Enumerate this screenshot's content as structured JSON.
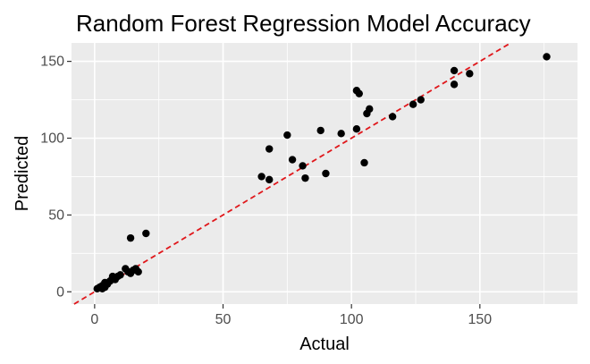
{
  "chart_data": {
    "type": "scatter",
    "title": "Random Forest Regression Model Accuracy",
    "xlabel": "Actual",
    "ylabel": "Predicted",
    "xlim": [
      -9,
      188
    ],
    "ylim": [
      -8,
      162
    ],
    "x_ticks": [
      0,
      50,
      100,
      150
    ],
    "x_tick_labels": [
      "0",
      "50",
      "100",
      "150"
    ],
    "y_ticks": [
      0,
      50,
      100,
      150
    ],
    "y_tick_labels": [
      "0",
      "50",
      "100",
      "150"
    ],
    "grid": true,
    "reference_line": {
      "type": "identity",
      "slope": 1,
      "intercept": 0,
      "color": "#e0171b",
      "style": "dashed"
    },
    "colors": {
      "panel": "#ebebeb",
      "grid": "#ffffff",
      "point": "#000000",
      "axis_text": "#4d4d4d"
    },
    "points": [
      {
        "x": 1,
        "y": 2
      },
      {
        "x": 2,
        "y": 3
      },
      {
        "x": 3,
        "y": 4
      },
      {
        "x": 3,
        "y": 2
      },
      {
        "x": 4,
        "y": 3
      },
      {
        "x": 4,
        "y": 6
      },
      {
        "x": 5,
        "y": 5
      },
      {
        "x": 6,
        "y": 7
      },
      {
        "x": 7,
        "y": 9
      },
      {
        "x": 7,
        "y": 10
      },
      {
        "x": 8,
        "y": 8
      },
      {
        "x": 9,
        "y": 10
      },
      {
        "x": 10,
        "y": 11
      },
      {
        "x": 12,
        "y": 15
      },
      {
        "x": 13,
        "y": 13
      },
      {
        "x": 14,
        "y": 12
      },
      {
        "x": 14,
        "y": 35
      },
      {
        "x": 15,
        "y": 14
      },
      {
        "x": 16,
        "y": 15
      },
      {
        "x": 17,
        "y": 13
      },
      {
        "x": 20,
        "y": 38
      },
      {
        "x": 65,
        "y": 75
      },
      {
        "x": 68,
        "y": 73
      },
      {
        "x": 68,
        "y": 93
      },
      {
        "x": 75,
        "y": 102
      },
      {
        "x": 77,
        "y": 86
      },
      {
        "x": 81,
        "y": 82
      },
      {
        "x": 82,
        "y": 74
      },
      {
        "x": 88,
        "y": 105
      },
      {
        "x": 90,
        "y": 77
      },
      {
        "x": 96,
        "y": 103
      },
      {
        "x": 102,
        "y": 106
      },
      {
        "x": 102,
        "y": 131
      },
      {
        "x": 103,
        "y": 129
      },
      {
        "x": 105,
        "y": 84
      },
      {
        "x": 106,
        "y": 116
      },
      {
        "x": 107,
        "y": 119
      },
      {
        "x": 116,
        "y": 114
      },
      {
        "x": 124,
        "y": 122
      },
      {
        "x": 127,
        "y": 125
      },
      {
        "x": 140,
        "y": 144
      },
      {
        "x": 140,
        "y": 135
      },
      {
        "x": 146,
        "y": 142
      },
      {
        "x": 176,
        "y": 153
      }
    ]
  }
}
